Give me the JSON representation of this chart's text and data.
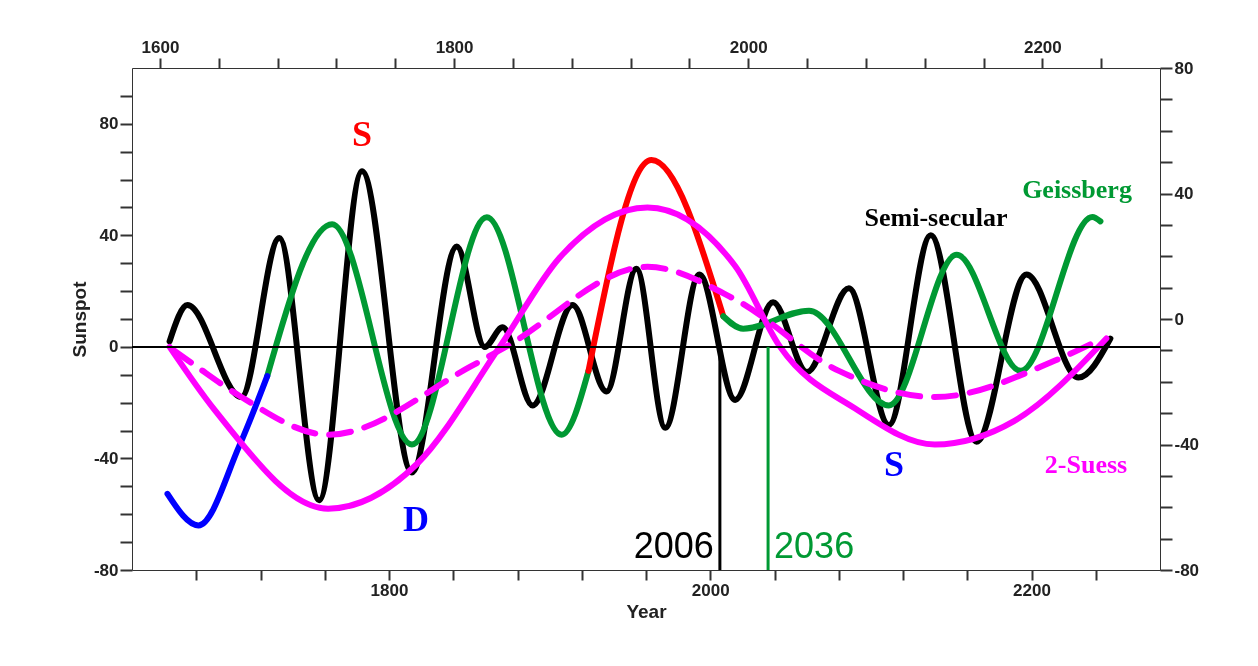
{
  "chart_data": {
    "type": "line",
    "xlabel": "Year",
    "ylabel": "Sunspot",
    "xlim": [
      1640,
      2280
    ],
    "xticks": [
      {
        "value": 1680,
        "label": null
      },
      {
        "value": 1720,
        "label": null
      },
      {
        "value": 1760,
        "label": null
      },
      1800,
      {
        "value": 1840,
        "label": null
      },
      {
        "value": 1880,
        "label": null
      },
      {
        "value": 1920,
        "label": null
      },
      {
        "value": 1960,
        "label": null
      },
      2000,
      {
        "value": 2040,
        "label": null
      },
      {
        "value": 2080,
        "label": null
      },
      {
        "value": 2120,
        "label": null
      },
      {
        "value": 2160,
        "label": null
      },
      2200,
      {
        "value": 2240,
        "label": null
      }
    ],
    "x2lim": [
      1581,
      2280
    ],
    "x2ticks": [
      1600,
      {
        "value": 1640,
        "label": null
      },
      {
        "value": 1680,
        "label": null
      },
      {
        "value": 1720,
        "label": null
      },
      {
        "value": 1760,
        "label": null
      },
      1800,
      {
        "value": 1840,
        "label": null
      },
      {
        "value": 1880,
        "label": null
      },
      {
        "value": 1920,
        "label": null
      },
      {
        "value": 1960,
        "label": null
      },
      2000,
      {
        "value": 2040,
        "label": null
      },
      {
        "value": 2080,
        "label": null
      },
      {
        "value": 2120,
        "label": null
      },
      {
        "value": 2160,
        "label": null
      },
      2200,
      {
        "value": 2240,
        "label": null
      }
    ],
    "ylim": [
      -80,
      100
    ],
    "yticks": [
      -80,
      {
        "value": -70,
        "label": null
      },
      {
        "value": -60,
        "label": null
      },
      {
        "value": -50,
        "label": null
      },
      -40,
      {
        "value": -30,
        "label": null
      },
      {
        "value": -20,
        "label": null
      },
      {
        "value": -10,
        "label": null
      },
      0,
      {
        "value": 10,
        "label": null
      },
      {
        "value": 20,
        "label": null
      },
      {
        "value": 30,
        "label": null
      },
      40,
      {
        "value": 50,
        "label": null
      },
      {
        "value": 60,
        "label": null
      },
      {
        "value": 70,
        "label": null
      },
      80,
      {
        "value": 90,
        "label": null
      }
    ],
    "y2lim": [
      -80,
      80
    ],
    "y2ticks": [
      -80,
      {
        "value": -70,
        "label": null
      },
      {
        "value": -60,
        "label": null
      },
      {
        "value": -50,
        "label": null
      },
      -40,
      {
        "value": -30,
        "label": null
      },
      {
        "value": -20,
        "label": null
      },
      {
        "value": -10,
        "label": null
      },
      0,
      {
        "value": 10,
        "label": null
      },
      {
        "value": 20,
        "label": null
      },
      {
        "value": 30,
        "label": null
      },
      40,
      {
        "value": 50,
        "label": null
      },
      {
        "value": 60,
        "label": null
      },
      {
        "value": 70,
        "label": null
      },
      80
    ],
    "grid": false,
    "series": [
      {
        "name": "Semi-secular",
        "color": "#000000",
        "line_style": "solid",
        "x": [
          1663.4,
          1674.5,
          1708,
          1731.7,
          1756.5,
          1783.2,
          1814.3,
          1842.2,
          1859.6,
          1870.8,
          1889.4,
          1914.3,
          1935.4,
          1954,
          1972,
          1993.2,
          2015.5,
          2039.1,
          2060.2,
          2086.3,
          2111.2,
          2137.3,
          2165.8,
          2196.9,
          2229.2,
          2249.1
        ],
        "values": [
          2,
          15,
          -18,
          39,
          -55,
          63,
          -45,
          36,
          0,
          7,
          -21,
          15,
          -16,
          28,
          -29,
          26,
          -19,
          16,
          -9,
          21,
          -28,
          40,
          -34,
          26,
          -11,
          3
        ]
      },
      {
        "color": "#009933",
        "line_style": "solid",
        "x": [
          1724.2,
          1764.6,
          1814.3,
          1860.9,
          1907.5,
          1924.2
        ],
        "values": [
          -10.5,
          44,
          -35,
          46.5,
          -31.5,
          -8.6
        ]
      },
      {
        "color": "#ff0000",
        "line_style": "solid",
        "x": [
          1924.2,
          1963.4,
          2008.1
        ],
        "values": [
          -8.6,
          67,
          11
        ]
      },
      {
        "name": "Geissberg",
        "color": "#009933",
        "line_style": "solid",
        "x": [
          2008.1,
          2020.5,
          2061.5,
          2111.2,
          2153.4,
          2193.2,
          2237.9,
          2242.9
        ],
        "values": [
          11,
          6.5,
          13,
          -21,
          33,
          -8.6,
          46.6,
          45
        ]
      },
      {
        "color": "#0000ff",
        "line_style": "solid",
        "x": [
          1662.1,
          1681.4,
          1706.8,
          1724.2
        ],
        "values": [
          -52.7,
          -64,
          -35.5,
          -10.5
        ]
      },
      {
        "name": "2-Suess",
        "color": "#ff00ff",
        "line_style": "solid",
        "x": [
          1663.4,
          1691.3,
          1762.1,
          1817.4,
          1868.9,
          1906.2,
          1960.9,
          2015.5,
          2043.5,
          2090,
          2139.8,
          2189.4,
          2246.6
        ],
        "values": [
          0,
          -22.5,
          -58,
          -42,
          0,
          32,
          50,
          29,
          0,
          -22,
          -35,
          -26.5,
          3
        ]
      },
      {
        "color": "#ff00ff",
        "line_style": "dashed",
        "x": [
          1665.5,
          1680.1,
          1706.8,
          1762.1,
          1850.9,
          1872.7,
          1960.9,
          2015.5,
          2080.1,
          2139.8,
          2214.3,
          2244
        ],
        "values": [
          -1,
          -7,
          -17.5,
          -31.5,
          -7,
          0,
          28.7,
          17,
          -8.6,
          -18,
          -5,
          3
        ]
      }
    ],
    "ref_lines": [
      {
        "axis": "y",
        "value": 0,
        "color": "#000000"
      },
      {
        "axis": "x",
        "value": 2006,
        "label": "2006",
        "color": "#000000"
      },
      {
        "axis": "x",
        "value": 2036,
        "label": "2036",
        "color": "#009933"
      }
    ],
    "annotations": [
      "S",
      "D",
      "S"
    ]
  }
}
